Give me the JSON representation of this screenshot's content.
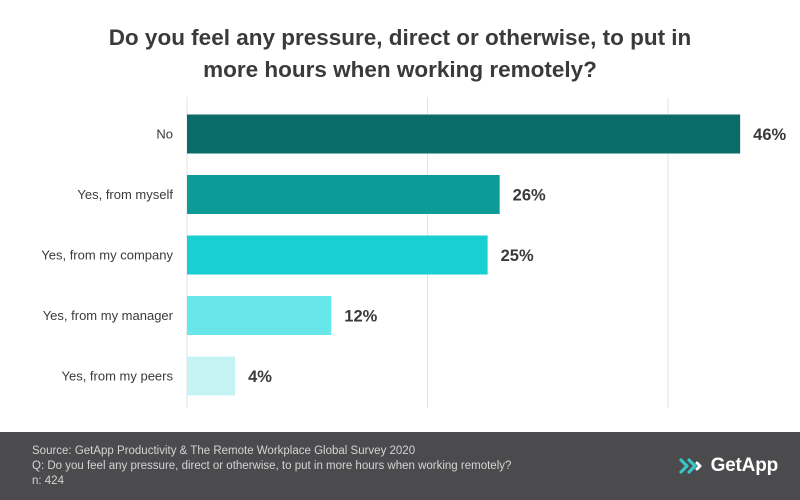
{
  "chart_data": {
    "type": "bar",
    "orientation": "horizontal",
    "title_lines": [
      "Do you feel any pressure, direct or otherwise, to put in",
      "more hours when working remotely?"
    ],
    "categories": [
      "No",
      "Yes, from myself",
      "Yes, from my company",
      "Yes, from my manager",
      "Yes, from my peers"
    ],
    "values": [
      46,
      26,
      25,
      12,
      4
    ],
    "value_labels": [
      "46%",
      "26%",
      "25%",
      "12%",
      "4%"
    ],
    "bar_colors": [
      "#0a6b68",
      "#0c9b97",
      "#19cfd2",
      "#68e7ea",
      "#c6f4f4"
    ],
    "xlim": [
      0,
      50
    ],
    "grid": true,
    "legend": "none"
  },
  "footer": {
    "source": "Source: GetApp Productivity & The Remote Workplace Global Survey 2020",
    "question": "Q: Do you feel any pressure, direct or otherwise, to put in more hours when working remotely?",
    "n": "n: 424"
  },
  "logo": {
    "text": "GetApp",
    "icon": "getapp-chevrons-icon",
    "color": "#38c6c6"
  }
}
